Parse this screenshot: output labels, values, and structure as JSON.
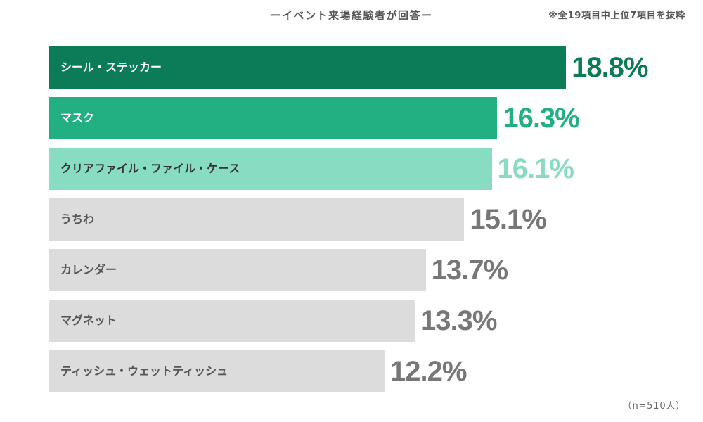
{
  "chart_data": {
    "type": "bar",
    "orientation": "horizontal",
    "title": "ーイベント来場経験者が回答ー",
    "note": "※全19項目中上位7項目を抜粋",
    "sample_size": "（n=510人）",
    "categories": [
      "シール・ステッカー",
      "マスク",
      "クリアファイル・ファイル・ケース",
      "うちわ",
      "カレンダー",
      "マグネット",
      "ティッシュ・ウェットティッシュ"
    ],
    "values": [
      18.8,
      16.3,
      16.1,
      15.1,
      13.7,
      13.3,
      12.2
    ],
    "value_suffix": "%",
    "grid": false,
    "legend": "none",
    "bar_colors": [
      "#0c7b58",
      "#22b083",
      "#88dcc2",
      "#dcdcdc",
      "#dcdcdc",
      "#dcdcdc",
      "#dcdcdc"
    ],
    "label_colors": [
      "#ffffff",
      "#ffffff",
      "#333333",
      "#555555",
      "#555555",
      "#555555",
      "#555555"
    ],
    "value_label_colors": [
      "#0c7b58",
      "#22b083",
      "#88dcc2",
      "#777777",
      "#777777",
      "#777777",
      "#777777"
    ]
  }
}
